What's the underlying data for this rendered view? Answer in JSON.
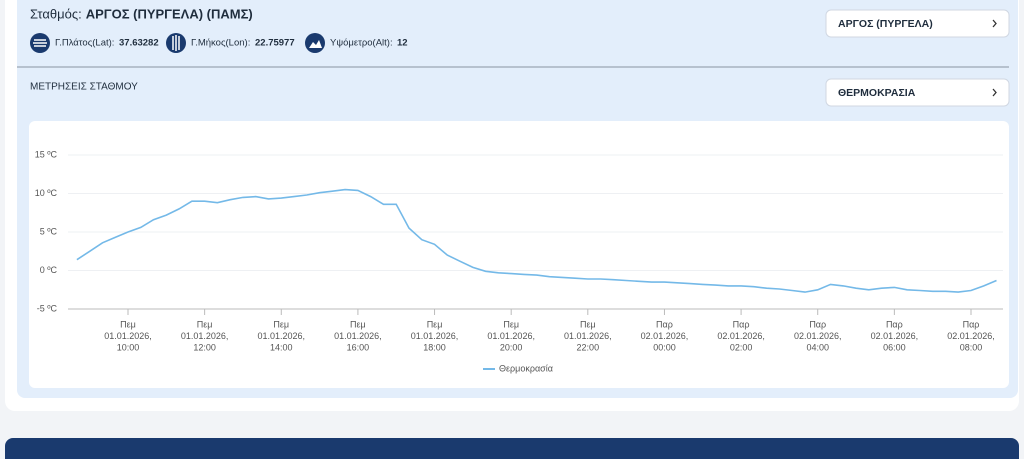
{
  "header": {
    "station_label": "Σταθμός:",
    "station_name": "ΑΡΓΟΣ (ΠΥΡΓΕΛΑ) (ΠΑΜΣ)",
    "lat_label": "Γ.Πλάτος(Lat):",
    "lat": 37.63282,
    "lon_label": "Γ.Μήκος(Lon):",
    "lon": 22.75977,
    "alt_label": "Υψόμετρο(Alt):",
    "alt": 12,
    "station_select": "ΑΡΓΟΣ (ΠΥΡΓΕΛΑ)"
  },
  "section": {
    "title": "ΜΕΤΡΗΣΕΙΣ ΣΤΑΘΜΟΥ",
    "parameter_select": "ΘΕΡΜΟΚΡΑΣΙΑ"
  },
  "chart_data": {
    "type": "line",
    "x": [
      "2026-01-01T08:40",
      "2026-01-01T09:00",
      "2026-01-01T09:20",
      "2026-01-01T09:40",
      "2026-01-01T10:00",
      "2026-01-01T10:20",
      "2026-01-01T10:40",
      "2026-01-01T11:00",
      "2026-01-01T11:20",
      "2026-01-01T11:40",
      "2026-01-01T12:00",
      "2026-01-01T12:20",
      "2026-01-01T12:40",
      "2026-01-01T13:00",
      "2026-01-01T13:20",
      "2026-01-01T13:40",
      "2026-01-01T14:00",
      "2026-01-01T14:20",
      "2026-01-01T14:40",
      "2026-01-01T15:00",
      "2026-01-01T15:20",
      "2026-01-01T15:40",
      "2026-01-01T16:00",
      "2026-01-01T16:20",
      "2026-01-01T16:40",
      "2026-01-01T17:00",
      "2026-01-01T17:20",
      "2026-01-01T17:40",
      "2026-01-01T18:00",
      "2026-01-01T18:20",
      "2026-01-01T18:40",
      "2026-01-01T19:00",
      "2026-01-01T19:20",
      "2026-01-01T19:40",
      "2026-01-01T20:00",
      "2026-01-01T20:20",
      "2026-01-01T20:40",
      "2026-01-01T21:00",
      "2026-01-01T21:20",
      "2026-01-01T21:40",
      "2026-01-01T22:00",
      "2026-01-01T22:20",
      "2026-01-01T22:40",
      "2026-01-01T23:00",
      "2026-01-01T23:20",
      "2026-01-01T23:40",
      "2026-01-02T00:00",
      "2026-01-02T00:20",
      "2026-01-02T00:40",
      "2026-01-02T01:00",
      "2026-01-02T01:20",
      "2026-01-02T01:40",
      "2026-01-02T02:00",
      "2026-01-02T02:20",
      "2026-01-02T02:40",
      "2026-01-02T03:00",
      "2026-01-02T03:20",
      "2026-01-02T03:40",
      "2026-01-02T04:00",
      "2026-01-02T04:20",
      "2026-01-02T04:40",
      "2026-01-02T05:00",
      "2026-01-02T05:20",
      "2026-01-02T05:40",
      "2026-01-02T06:00",
      "2026-01-02T06:20",
      "2026-01-02T06:40",
      "2026-01-02T07:00",
      "2026-01-02T07:20",
      "2026-01-02T07:40",
      "2026-01-02T08:00",
      "2026-01-02T08:20",
      "2026-01-02T08:40"
    ],
    "series": [
      {
        "name": "Θερμοκρασία",
        "color": "#74b9e8",
        "values": [
          1.4,
          2.5,
          3.6,
          4.3,
          5.0,
          5.6,
          6.6,
          7.2,
          8.0,
          9.0,
          9.0,
          8.8,
          9.2,
          9.5,
          9.6,
          9.3,
          9.4,
          9.6,
          9.8,
          10.1,
          10.3,
          10.5,
          10.4,
          9.6,
          8.6,
          8.6,
          5.5,
          4.0,
          3.4,
          2.0,
          1.2,
          0.4,
          -0.1,
          -0.3,
          -0.4,
          -0.5,
          -0.6,
          -0.8,
          -0.9,
          -1.0,
          -1.1,
          -1.1,
          -1.2,
          -1.3,
          -1.4,
          -1.5,
          -1.5,
          -1.6,
          -1.7,
          -1.8,
          -1.9,
          -2.0,
          -2.0,
          -2.1,
          -2.3,
          -2.4,
          -2.6,
          -2.8,
          -2.5,
          -1.8,
          -2.0,
          -2.3,
          -2.5,
          -2.3,
          -2.2,
          -2.5,
          -2.6,
          -2.7,
          -2.7,
          -2.8,
          -2.6,
          -2.0,
          -1.3
        ]
      }
    ],
    "ylim": [
      -5,
      15
    ],
    "yticks": [
      {
        "value": -5,
        "label": "-5 ºC"
      },
      {
        "value": 0,
        "label": "0 ºC"
      },
      {
        "value": 5,
        "label": "5 ºC"
      },
      {
        "value": 10,
        "label": "10 ºC"
      },
      {
        "value": 15,
        "label": "15 ºC"
      }
    ],
    "xticks": [
      {
        "value": "2026-01-01T10:00",
        "label": [
          "Πεμ",
          "01.01.2026,",
          "10:00"
        ]
      },
      {
        "value": "2026-01-01T12:00",
        "label": [
          "Πεμ",
          "01.01.2026,",
          "12:00"
        ]
      },
      {
        "value": "2026-01-01T14:00",
        "label": [
          "Πεμ",
          "01.01.2026,",
          "14:00"
        ]
      },
      {
        "value": "2026-01-01T16:00",
        "label": [
          "Πεμ",
          "01.01.2026,",
          "16:00"
        ]
      },
      {
        "value": "2026-01-01T18:00",
        "label": [
          "Πεμ",
          "01.01.2026,",
          "18:00"
        ]
      },
      {
        "value": "2026-01-01T20:00",
        "label": [
          "Πεμ",
          "01.01.2026,",
          "20:00"
        ]
      },
      {
        "value": "2026-01-01T22:00",
        "label": [
          "Πεμ",
          "01.01.2026,",
          "22:00"
        ]
      },
      {
        "value": "2026-01-02T00:00",
        "label": [
          "Παρ",
          "02.01.2026,",
          "00:00"
        ]
      },
      {
        "value": "2026-01-02T02:00",
        "label": [
          "Παρ",
          "02.01.2026,",
          "02:00"
        ]
      },
      {
        "value": "2026-01-02T04:00",
        "label": [
          "Παρ",
          "02.01.2026,",
          "04:00"
        ]
      },
      {
        "value": "2026-01-02T06:00",
        "label": [
          "Παρ",
          "02.01.2026,",
          "06:00"
        ]
      },
      {
        "value": "2026-01-02T08:00",
        "label": [
          "Παρ",
          "02.01.2026,",
          "08:00"
        ]
      }
    ],
    "grid": true,
    "legend": "bottom"
  }
}
